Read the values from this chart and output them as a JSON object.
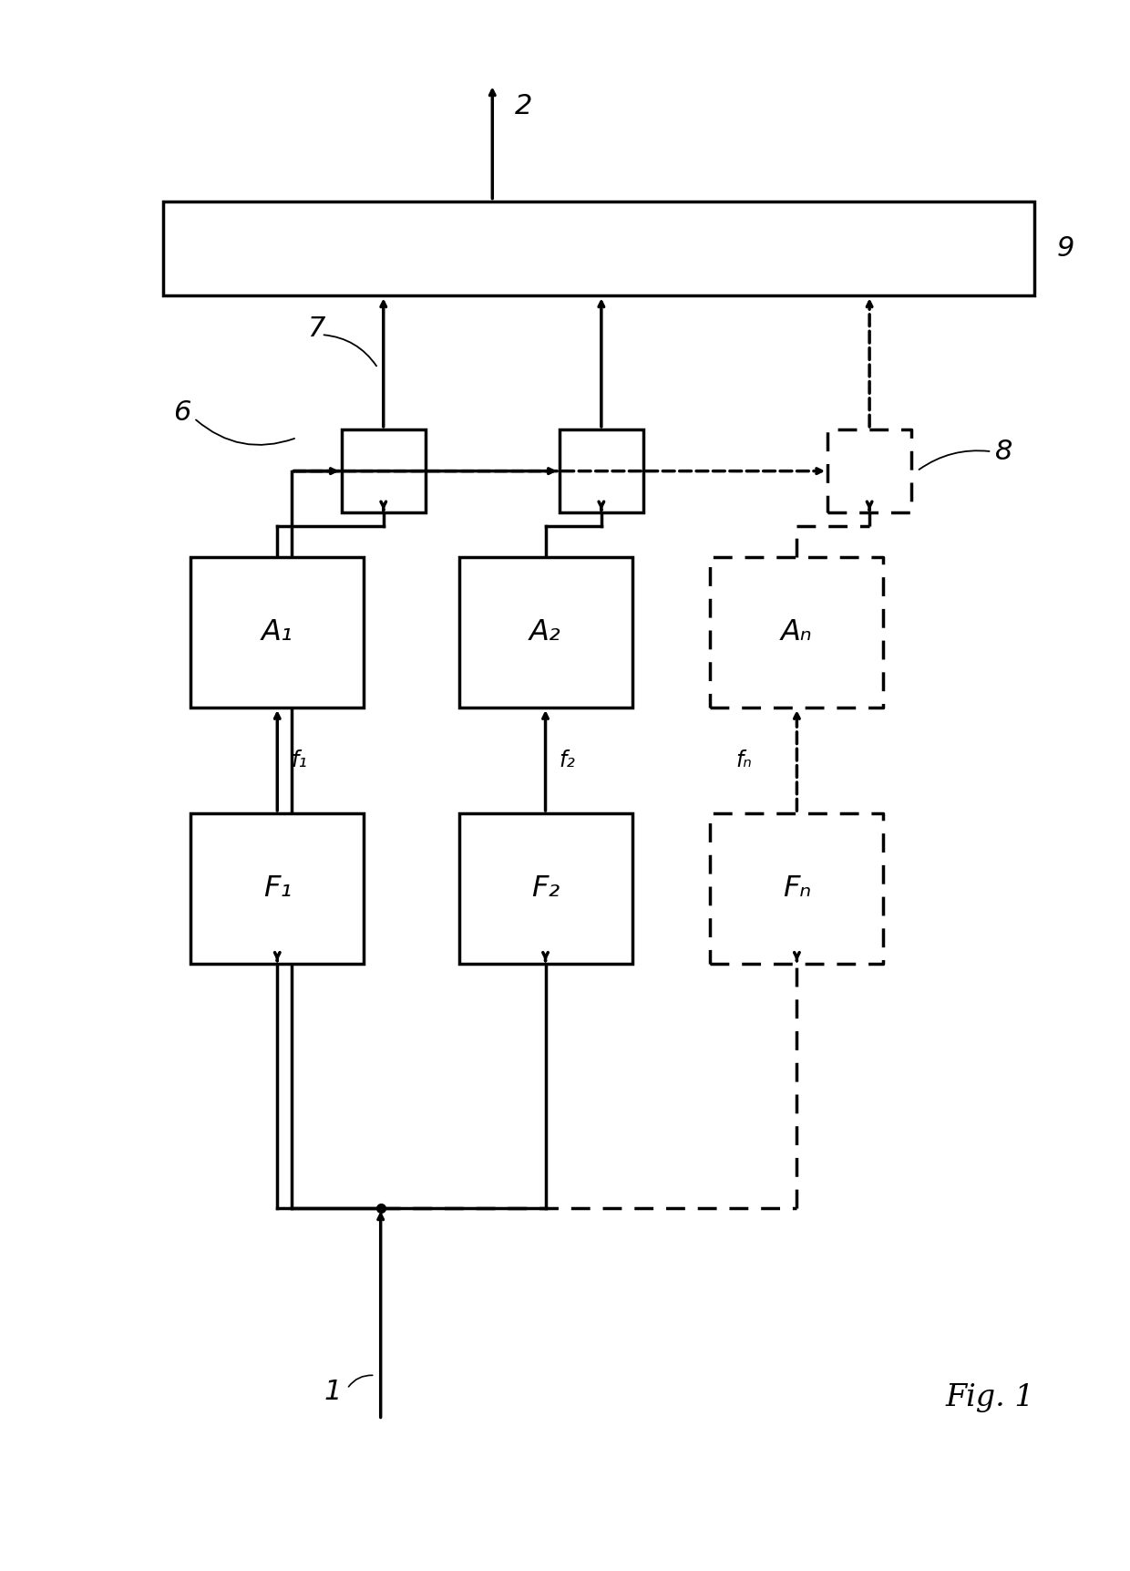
{
  "bg_color": "#ffffff",
  "line_color": "#000000",
  "fig_label": "Fig. 1",
  "labels": {
    "A1": "A₁",
    "A2": "A₂",
    "An": "Aₙ",
    "F1": "F₁",
    "F2": "F₂",
    "Fn": "Fₙ",
    "f1": "f₁",
    "f2": "f₂",
    "fn": "fₙ",
    "node1": "1",
    "node2": "2",
    "node6": "6",
    "node7": "7",
    "node8": "8",
    "node9": "9"
  }
}
